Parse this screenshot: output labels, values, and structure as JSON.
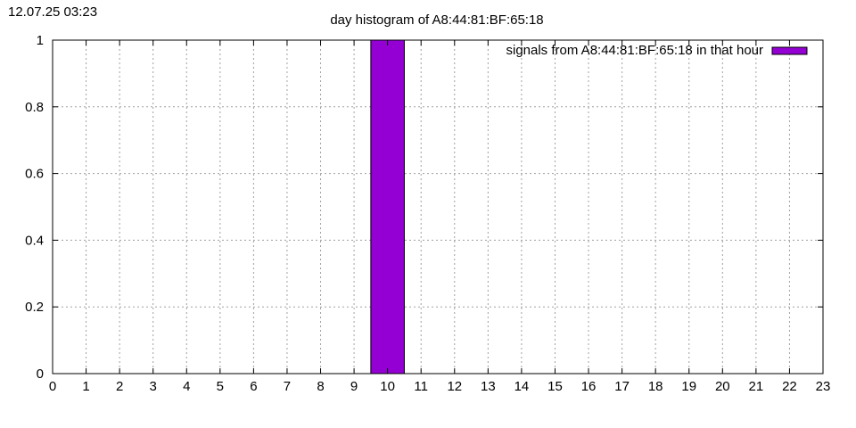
{
  "timestamp": "12.07.25 03:23",
  "chart_data": {
    "type": "bar",
    "title": "day histogram of A8:44:81:BF:65:18",
    "xlabel": "",
    "ylabel": "",
    "xlim": [
      0,
      23
    ],
    "ylim": [
      0,
      1
    ],
    "grid": true,
    "legend_position": "top-right",
    "x_ticks": [
      "0",
      "1",
      "2",
      "3",
      "4",
      "5",
      "6",
      "7",
      "8",
      "9",
      "10",
      "11",
      "12",
      "13",
      "14",
      "15",
      "16",
      "17",
      "18",
      "19",
      "20",
      "21",
      "22",
      "23"
    ],
    "y_ticks": [
      "0",
      "0.2",
      "0.4",
      "0.6",
      "0.8",
      "1"
    ],
    "y_tick_values": [
      0,
      0.2,
      0.4,
      0.6,
      0.8,
      1
    ],
    "categories": [
      0,
      1,
      2,
      3,
      4,
      5,
      6,
      7,
      8,
      9,
      10,
      11,
      12,
      13,
      14,
      15,
      16,
      17,
      18,
      19,
      20,
      21,
      22,
      23
    ],
    "series": [
      {
        "name": "signals from A8:44:81:BF:65:18 in that hour",
        "color": "#9400d3",
        "values": [
          0,
          0,
          0,
          0,
          0,
          0,
          0,
          0,
          0,
          0,
          1,
          0,
          0,
          0,
          0,
          0,
          0,
          0,
          0,
          0,
          0,
          0,
          0,
          0
        ]
      }
    ]
  }
}
